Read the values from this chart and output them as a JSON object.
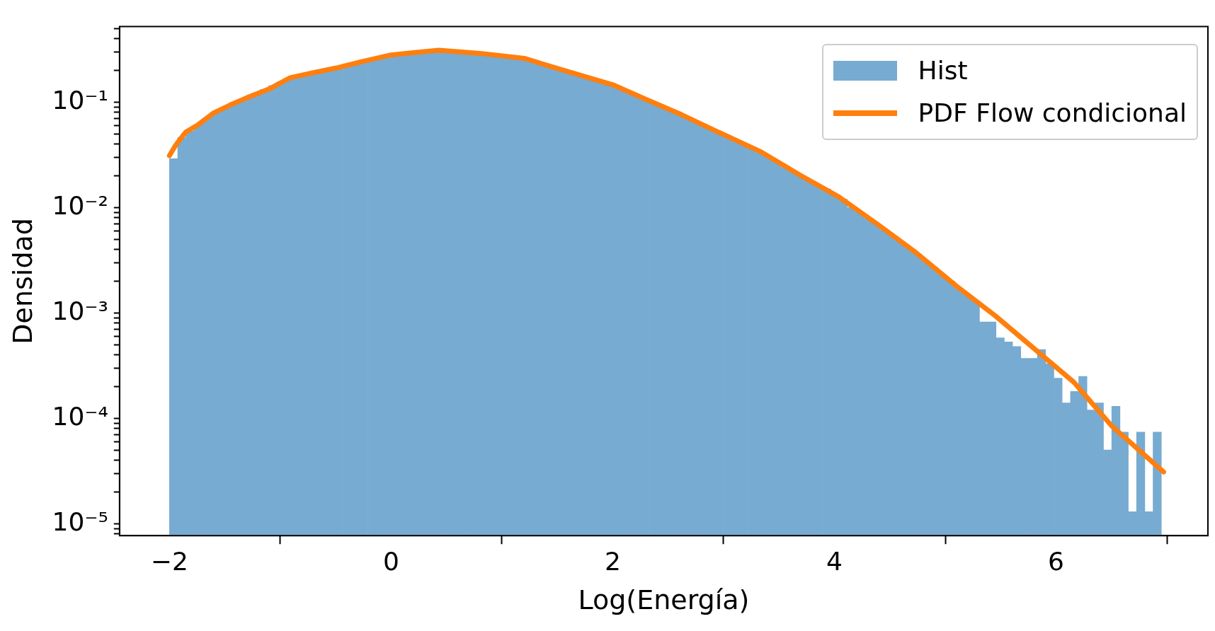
{
  "chart_data": {
    "type": "histogram",
    "xlabel": "Log(Energía)",
    "ylabel": "Densidad",
    "log": "y",
    "grid": false,
    "legend": "top right",
    "xlim": [
      -2.45,
      7.37
    ],
    "xticks": [
      {
        "value": -2,
        "label": "−2"
      },
      0,
      2,
      4,
      6
    ],
    "ylim": [
      7.7e-06,
      0.52
    ],
    "yticks": [
      {
        "value": 8e-06,
        "label": null
      },
      {
        "value": 9e-06,
        "label": null
      },
      {
        "value": 1e-05,
        "label": "10⁻⁵"
      },
      {
        "value": 2e-05,
        "label": null
      },
      {
        "value": 3e-05,
        "label": null
      },
      {
        "value": 4e-05,
        "label": null
      },
      {
        "value": 5e-05,
        "label": null
      },
      {
        "value": 6e-05,
        "label": null
      },
      {
        "value": 7e-05,
        "label": null
      },
      {
        "value": 8e-05,
        "label": null
      },
      {
        "value": 9e-05,
        "label": null
      },
      {
        "value": 0.0001,
        "label": "10⁻⁴"
      },
      {
        "value": 0.0002,
        "label": null
      },
      {
        "value": 0.0003,
        "label": null
      },
      {
        "value": 0.0004,
        "label": null
      },
      {
        "value": 0.0005,
        "label": null
      },
      {
        "value": 0.0006,
        "label": null
      },
      {
        "value": 0.0007,
        "label": null
      },
      {
        "value": 0.0008,
        "label": null
      },
      {
        "value": 0.0009,
        "label": null
      },
      {
        "value": 0.001,
        "label": "10⁻³"
      },
      {
        "value": 0.002,
        "label": null
      },
      {
        "value": 0.003,
        "label": null
      },
      {
        "value": 0.004,
        "label": null
      },
      {
        "value": 0.005,
        "label": null
      },
      {
        "value": 0.006,
        "label": null
      },
      {
        "value": 0.007,
        "label": null
      },
      {
        "value": 0.008,
        "label": null
      },
      {
        "value": 0.009,
        "label": null
      },
      {
        "value": 0.01,
        "label": "10⁻²"
      },
      {
        "value": 0.02,
        "label": null
      },
      {
        "value": 0.03,
        "label": null
      },
      {
        "value": 0.04,
        "label": null
      },
      {
        "value": 0.05,
        "label": null
      },
      {
        "value": 0.06,
        "label": null
      },
      {
        "value": 0.07,
        "label": null
      },
      {
        "value": 0.08,
        "label": null
      },
      {
        "value": 0.09,
        "label": null
      },
      {
        "value": 0.1,
        "label": "10⁻¹"
      },
      {
        "value": 0.2,
        "label": null
      },
      {
        "value": 0.3,
        "label": null
      },
      {
        "value": 0.4,
        "label": null
      },
      {
        "value": 0.5,
        "label": null
      }
    ],
    "bins": [
      -2,
      -1.925,
      -1.851,
      -1.776,
      -1.702,
      -1.627,
      -1.552,
      -1.478,
      -1.403,
      -1.329,
      -1.254,
      -1.18,
      -1.105,
      -1.03,
      -0.956,
      -0.881,
      -0.807,
      -0.732,
      -0.658,
      -0.583,
      -0.508,
      -0.434,
      -0.359,
      -0.285,
      -0.21,
      -0.135,
      -0.061,
      0.014,
      0.088,
      0.163,
      0.238,
      0.312,
      0.387,
      0.461,
      0.536,
      0.61,
      0.685,
      0.76,
      0.834,
      0.909,
      0.983,
      1.058,
      1.133,
      1.207,
      1.282,
      1.356,
      1.431,
      1.505,
      1.58,
      1.655,
      1.729,
      1.804,
      1.878,
      1.953,
      2.028,
      2.102,
      2.177,
      2.251,
      2.326,
      2.4,
      2.475,
      2.55,
      2.624,
      2.699,
      2.773,
      2.848,
      2.922,
      2.997,
      3.072,
      3.146,
      3.221,
      3.295,
      3.37,
      3.445,
      3.519,
      3.594,
      3.668,
      3.743,
      3.817,
      3.892,
      3.967,
      4.041,
      4.116,
      4.19,
      4.265,
      4.34,
      4.414,
      4.489,
      4.563,
      4.638,
      4.712,
      4.787,
      4.862,
      4.936,
      5.011,
      5.085,
      5.16,
      5.235,
      5.309,
      5.384,
      5.458,
      5.533,
      5.607,
      5.682,
      5.757,
      5.831,
      5.906,
      5.98,
      6.055,
      6.13,
      6.204,
      6.279,
      6.353,
      6.428,
      6.502,
      6.577,
      6.652,
      6.726,
      6.801,
      6.875,
      6.95
    ],
    "series": [
      {
        "name": "Hist",
        "color": "#77abd1",
        "values": [
          0.029,
          0.046,
          0.053,
          0.061,
          0.07,
          0.08,
          0.087,
          0.095,
          0.103,
          0.112,
          0.121,
          0.132,
          0.143,
          0.155,
          0.168,
          0.176,
          0.184,
          0.191,
          0.199,
          0.207,
          0.216,
          0.225,
          0.234,
          0.244,
          0.254,
          0.264,
          0.275,
          0.283,
          0.288,
          0.294,
          0.3,
          0.306,
          0.313,
          0.307,
          0.301,
          0.296,
          0.29,
          0.285,
          0.279,
          0.274,
          0.269,
          0.264,
          0.259,
          0.248,
          0.235,
          0.223,
          0.212,
          0.201,
          0.191,
          0.181,
          0.171,
          0.163,
          0.154,
          0.146,
          0.136,
          0.125,
          0.116,
          0.107,
          0.099,
          0.091,
          0.085,
          0.078,
          0.072,
          0.066,
          0.061,
          0.056,
          0.051,
          0.047,
          0.043,
          0.04,
          0.036,
          0.033,
          0.03,
          0.027,
          0.024,
          0.022,
          0.02,
          0.018,
          0.016,
          0.015,
          0.013,
          0.012,
          0.01,
          0.009,
          0.0079,
          0.007,
          0.0061,
          0.0054,
          0.0047,
          0.0041,
          0.0036,
          0.0031,
          0.0027,
          0.0023,
          0.002,
          0.0017,
          0.0015,
          0.0013,
          0.00082,
          0.00082,
          0.00058,
          0.00053,
          0.00048,
          0.00037,
          0.00037,
          0.00045,
          0.00033,
          0.00024,
          0.00014,
          0.00018,
          0.00025,
          0.00012,
          0.00014,
          5e-05,
          0.00013,
          7.4e-05,
          1.3e-05,
          7.4e-05,
          1.3e-05,
          7.4e-05
        ]
      },
      {
        "name": "PDF Flow condicional",
        "type": "line",
        "color": "#ff7f0e",
        "x": [
          -2,
          -1.95,
          -1.9,
          -1.85,
          -1.75,
          -1.6,
          -1.45,
          -1.3,
          -1.1,
          -0.91,
          -0.7,
          -0.5,
          -0.25,
          0,
          0.2,
          0.43,
          0.8,
          1.2,
          1.6,
          2,
          2.3,
          2.62,
          2.95,
          3.33,
          3.7,
          4.04,
          4.4,
          4.74,
          5.1,
          5.45,
          5.8,
          6.16,
          6.5,
          6.97
        ],
        "values": [
          0.031,
          0.038,
          0.045,
          0.052,
          0.06,
          0.079,
          0.094,
          0.11,
          0.133,
          0.17,
          0.19,
          0.21,
          0.244,
          0.28,
          0.294,
          0.31,
          0.29,
          0.26,
          0.194,
          0.146,
          0.106,
          0.076,
          0.052,
          0.034,
          0.02,
          0.0126,
          0.0068,
          0.0037,
          0.0018,
          0.00094,
          0.00046,
          0.00022,
          8.5e-05,
          3.1e-05
        ]
      }
    ]
  }
}
